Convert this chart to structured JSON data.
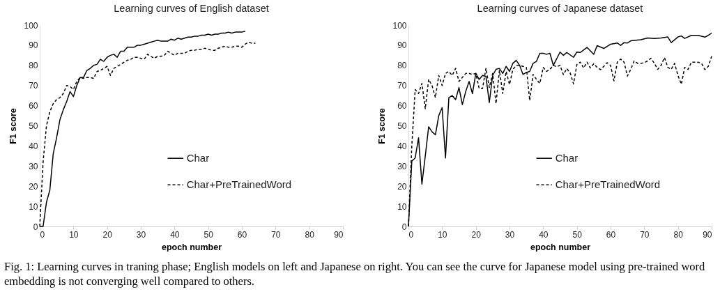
{
  "chart_data": [
    {
      "type": "line",
      "title": "Learning curves of English dataset",
      "xlabel": "epoch number",
      "ylabel": "F1 score",
      "xlim": [
        0,
        90
      ],
      "xticks": [
        0,
        10,
        20,
        30,
        40,
        50,
        60,
        70,
        80,
        90
      ],
      "ylim": [
        0,
        100
      ],
      "yticks": [
        0,
        10,
        20,
        30,
        40,
        50,
        60,
        70,
        80,
        90,
        100
      ],
      "grid": false,
      "legend": "right",
      "marker": "none",
      "annotations": [
        "Fig. 1: Learning curves in traning phase; English models on left and Japanese on right. You can see the curve for Japanese model using pre-trained word embedding is not converging well compared to others."
      ],
      "series": [
        {
          "name": "Char",
          "color": "#000000",
          "line_style": "solid",
          "x": [
            0,
            1,
            2,
            3,
            4,
            5,
            6,
            7,
            8,
            9,
            10,
            11,
            12,
            13,
            14,
            15,
            16,
            17,
            18,
            19,
            20,
            21,
            22,
            23,
            24,
            25,
            26,
            27,
            28,
            29,
            30,
            31,
            32,
            33,
            34,
            35,
            36,
            37,
            38,
            39,
            40,
            41,
            42,
            43,
            44,
            45,
            46,
            47,
            48,
            49,
            50,
            51,
            52,
            53,
            54,
            55,
            56,
            57,
            58,
            59,
            60,
            61
          ],
          "values": [
            0,
            0,
            12,
            18,
            36,
            44,
            53,
            58,
            62,
            67,
            64.5,
            70,
            74,
            74,
            77.5,
            78.5,
            80,
            80.5,
            83,
            82,
            84,
            85,
            85.5,
            84,
            87,
            87,
            89,
            89,
            89,
            90,
            90,
            90.5,
            91,
            91.5,
            92,
            92.5,
            92,
            92,
            92,
            93,
            92.5,
            93.5,
            93,
            93.5,
            94,
            94,
            94.5,
            94.5,
            95,
            95,
            95.5,
            95,
            95.5,
            95.5,
            96,
            96,
            96.5,
            96,
            96.5,
            96.5,
            96.5,
            97
          ]
        },
        {
          "name": "Char+PreTrainedWord",
          "color": "#000000",
          "line_style": "dashed",
          "x": [
            0,
            1,
            2,
            3,
            4,
            5,
            6,
            7,
            8,
            9,
            10,
            11,
            12,
            13,
            14,
            15,
            16,
            17,
            18,
            19,
            20,
            21,
            22,
            23,
            24,
            25,
            26,
            27,
            28,
            29,
            30,
            31,
            32,
            33,
            34,
            35,
            36,
            37,
            38,
            39,
            40,
            41,
            42,
            43,
            44,
            45,
            46,
            47,
            48,
            49,
            50,
            51,
            52,
            53,
            54,
            55,
            56,
            57,
            58,
            59,
            60,
            61,
            62,
            63,
            64
          ],
          "values": [
            0,
            32,
            50,
            57,
            61,
            63,
            64,
            66,
            70,
            69.5,
            68,
            72,
            74,
            73.5,
            74,
            74,
            73.5,
            77,
            77.5,
            78.5,
            79.5,
            75,
            78.5,
            79.5,
            80.5,
            81.5,
            82.5,
            83,
            84,
            84,
            83.5,
            83,
            85.5,
            84.5,
            83.5,
            84.5,
            84.5,
            85,
            87,
            86,
            85,
            86,
            86,
            86,
            87,
            87.5,
            87.5,
            88,
            88,
            88.5,
            88,
            87.5,
            87.5,
            88.5,
            89,
            89.5,
            89,
            89,
            89.5,
            89.5,
            89,
            90.5,
            91.5,
            91,
            91
          ]
        }
      ]
    },
    {
      "type": "line",
      "title": "Learning curves of Japanese dataset",
      "xlabel": "epoch number",
      "ylabel": "F1 score",
      "xlim": [
        0,
        90
      ],
      "xticks": [
        0,
        10,
        20,
        30,
        40,
        50,
        60,
        70,
        80,
        90
      ],
      "ylim": [
        0,
        100
      ],
      "yticks": [
        0,
        10,
        20,
        30,
        40,
        50,
        60,
        70,
        80,
        90,
        100
      ],
      "grid": false,
      "legend": "right",
      "marker": "none",
      "series": [
        {
          "name": "Char",
          "color": "#000000",
          "line_style": "solid",
          "x": [
            0,
            1,
            2,
            3,
            4,
            5,
            6,
            7,
            8,
            9,
            10,
            11,
            12,
            13,
            14,
            15,
            16,
            17,
            18,
            19,
            20,
            21,
            22,
            23,
            24,
            25,
            26,
            27,
            28,
            29,
            30,
            31,
            32,
            33,
            34,
            35,
            36,
            37,
            38,
            39,
            40,
            41,
            42,
            43,
            45,
            46,
            47,
            49,
            50,
            51,
            53,
            55,
            56,
            58,
            60,
            62,
            63,
            64,
            65,
            66,
            69,
            71,
            73,
            75,
            77,
            78,
            80,
            81,
            82,
            84,
            86,
            88,
            89,
            90
          ],
          "values": [
            0,
            32.5,
            34,
            44,
            21,
            35,
            49.5,
            47,
            45.5,
            55,
            59,
            34,
            64,
            65,
            63,
            69,
            60.5,
            67,
            72,
            66,
            76,
            73,
            75,
            74.5,
            61.5,
            75,
            78,
            78.5,
            76,
            79.5,
            77,
            81,
            82.5,
            80,
            75.5,
            76.5,
            77,
            81,
            82,
            86,
            86,
            85.5,
            86,
            80,
            86.6,
            85,
            86.4,
            84,
            86.6,
            86.4,
            88.9,
            85.5,
            89.8,
            88.4,
            90.5,
            91.1,
            89.9,
            91.3,
            91.1,
            92.2,
            92.7,
            93.6,
            93.3,
            93.6,
            94.1,
            91.3,
            94.1,
            94.6,
            93.4,
            94.9,
            94.9,
            94,
            94.9,
            96
          ]
        },
        {
          "name": "Char+PreTrainedWord",
          "color": "#000000",
          "line_style": "dashed",
          "x": [
            0,
            1,
            2,
            3,
            4,
            5,
            6,
            7,
            8,
            9,
            10,
            11,
            12,
            13,
            14,
            15,
            16,
            17,
            18,
            19,
            20,
            21,
            22,
            23,
            24,
            25,
            26,
            27,
            28,
            29,
            30,
            31,
            32,
            33,
            34,
            35,
            36,
            37,
            38,
            39,
            40,
            41,
            42,
            43,
            44,
            45,
            46,
            47,
            48,
            49,
            50,
            51,
            52,
            53,
            54,
            55,
            56,
            57,
            58,
            59,
            60,
            61,
            62,
            63,
            64,
            65,
            66,
            67,
            68,
            69,
            70,
            71,
            72,
            73,
            74,
            75,
            76,
            77,
            78,
            79,
            80,
            81,
            82,
            83,
            84,
            85,
            86,
            87,
            88,
            89,
            90
          ],
          "values": [
            0,
            40,
            68,
            66,
            71,
            58.5,
            73,
            70,
            64,
            75,
            70,
            76,
            77,
            75,
            78.5,
            72,
            74,
            76,
            76,
            75.5,
            76,
            68.5,
            68.5,
            78.5,
            69,
            76,
            61,
            77.5,
            66,
            77,
            70.5,
            78,
            80,
            80,
            79.5,
            79,
            62.5,
            75.5,
            73,
            71,
            79,
            77,
            78,
            80,
            79.3,
            80,
            75.4,
            78.4,
            76.3,
            70.8,
            80.4,
            81.6,
            78.7,
            81.6,
            78.7,
            80.8,
            79,
            77.9,
            79.5,
            81.3,
            80,
            72.3,
            81.6,
            83.1,
            81.6,
            74.7,
            78,
            82.2,
            81,
            81,
            81.3,
            82.2,
            83.5,
            81,
            78,
            80,
            83.9,
            79,
            78,
            81,
            75,
            70.6,
            79,
            78,
            81.6,
            81.6,
            81.6,
            81,
            77.9,
            79.5,
            84.5
          ]
        }
      ]
    }
  ]
}
